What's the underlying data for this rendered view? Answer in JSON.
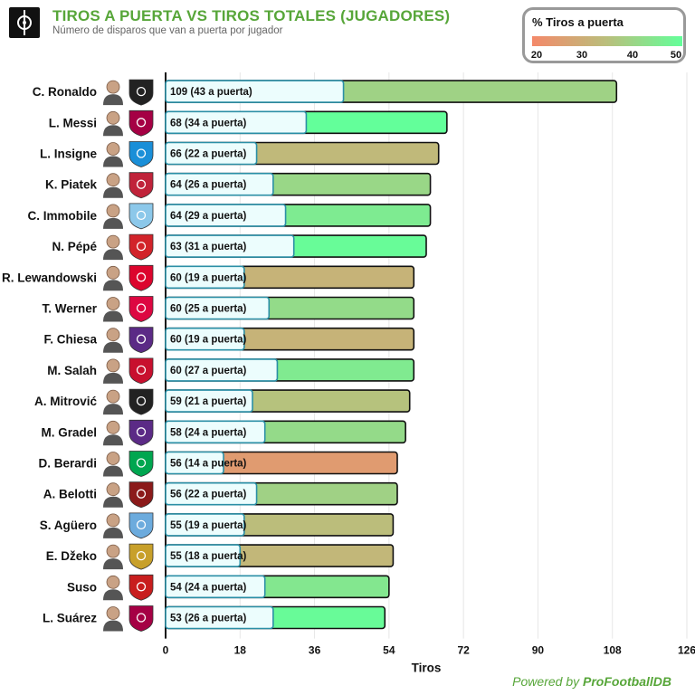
{
  "header": {
    "title": "TIROS A PUERTA VS TIROS TOTALES (JUGADORES)",
    "subtitle": "Número de disparos que van a puerta por jugador"
  },
  "legend": {
    "title": "% Tiros a puerta",
    "ticks": [
      "20",
      "30",
      "40",
      "50"
    ],
    "color_low": "#f4896a",
    "color_mid": "#b9bf7c",
    "color_high": "#63ff9a"
  },
  "footer": {
    "prefix": "Powered by ",
    "brand": "ProFootballDB"
  },
  "colors": {
    "accent": "#57a639"
  },
  "chart_data": {
    "type": "bar",
    "orientation": "horizontal",
    "xlabel": "Tiros",
    "xlim": [
      0,
      126
    ],
    "x_ticks": [
      0,
      18,
      36,
      54,
      72,
      90,
      108,
      126
    ],
    "grid": true,
    "legend_position": "top-right",
    "categories": [
      "C. Ronaldo",
      "L. Messi",
      "L. Insigne",
      "K. Piatek",
      "C. Immobile",
      "N. Pépé",
      "R. Lewandowski",
      "T. Werner",
      "F. Chiesa",
      "M. Salah",
      "A. Mitrović",
      "M. Gradel",
      "D. Berardi",
      "A. Belotti",
      "S. Agüero",
      "E. Džeko",
      "Suso",
      "L. Suárez"
    ],
    "series": [
      {
        "name": "Tiros",
        "values": [
          109,
          68,
          66,
          64,
          64,
          63,
          60,
          60,
          60,
          60,
          59,
          58,
          56,
          56,
          55,
          55,
          54,
          53
        ]
      },
      {
        "name": "a puerta",
        "values": [
          43,
          34,
          22,
          26,
          29,
          31,
          19,
          25,
          19,
          27,
          21,
          24,
          14,
          22,
          19,
          18,
          24,
          26
        ]
      }
    ],
    "value_labels": [
      "109 (43 a puerta)",
      "68 (34 a puerta)",
      "66 (22 a puerta)",
      "64 (26 a puerta)",
      "64 (29 a puerta)",
      "63 (31 a puerta)",
      "60 (19 a puerta)",
      "60 (25 a puerta)",
      "60 (19 a puerta)",
      "60 (27 a puerta)",
      "59 (21 a puerta)",
      "58 (24 a puerta)",
      "56 (14 a puerta)",
      "56 (22 a puerta)",
      "55 (19 a puerta)",
      "55 (18 a puerta)",
      "54 (24 a puerta)",
      "53 (26 a puerta)"
    ],
    "player_icons": [
      "player-photo",
      "player-photo",
      "player-photo",
      "player-photo",
      "player-photo",
      "player-photo",
      "player-photo",
      "player-photo",
      "player-photo",
      "player-photo",
      "player-photo",
      "player-photo",
      "player-photo",
      "player-photo",
      "player-photo",
      "player-photo",
      "player-photo",
      "player-photo"
    ],
    "club_icons": [
      "juventus-crest",
      "barcelona-crest",
      "napoli-crest",
      "genoa-crest",
      "lazio-crest",
      "lille-crest",
      "bayern-crest",
      "leipzig-crest",
      "fiorentina-crest",
      "liverpool-crest",
      "fulham-crest",
      "toulouse-crest",
      "sassuolo-crest",
      "torino-crest",
      "man-city-crest",
      "roma-crest",
      "milan-crest",
      "barcelona-crest"
    ],
    "club_colors": [
      "#222222",
      "#a50044",
      "#1a8fd8",
      "#c0233a",
      "#8cc8ea",
      "#d2232a",
      "#dc052d",
      "#dd0741",
      "#5b2a86",
      "#c8102e",
      "#222222",
      "#5b2a86",
      "#00a650",
      "#8b1a1a",
      "#6cabdd",
      "#c8a02a",
      "#c81e1e",
      "#a50044"
    ]
  }
}
